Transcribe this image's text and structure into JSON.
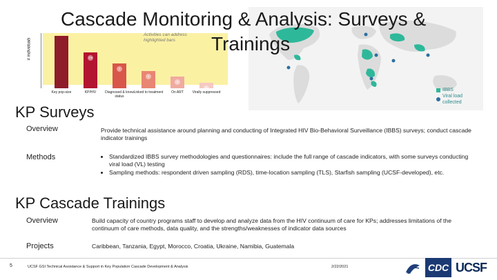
{
  "title": {
    "line1": "Cascade Monitoring & Analysis: Surveys &",
    "line2": "Trainings"
  },
  "chart": {
    "ylabel": "# individuals",
    "note": "Activities can address highlighted bars",
    "bars": [
      {
        "label": "Key pop-size",
        "color": "#8e1c2b",
        "value": 100,
        "badge": ""
      },
      {
        "label": "KP/HIV",
        "color": "#b3142f",
        "value": 68,
        "badge": "1%"
      },
      {
        "label": "Diagnosed & know status",
        "color": "#d9564a",
        "value": 47,
        "badge": "2"
      },
      {
        "label": "Linked to treatment",
        "color": "#e98573",
        "value": 33,
        "badge": "3"
      },
      {
        "label": "On ART",
        "color": "#f0aaa0",
        "value": 22,
        "badge": "4"
      },
      {
        "label": "Virally suppressed",
        "color": "#f5c9c2",
        "value": 11,
        "badge": "5"
      }
    ]
  },
  "map_legend": {
    "ibbs": "IBBS",
    "viral": "Viral load collected"
  },
  "kp_surveys": {
    "title": "KP Surveys",
    "overview_label": "Overview",
    "overview_text": "Provide technical assistance around planning and conducting of Integrated HIV Bio-Behavioral Surveillance (IBBS) surveys; conduct cascade indicator trainings",
    "methods_label": "Methods",
    "methods": [
      "Standardized IBBS survey methodologies and questionnaires: include the full range of cascade indicators, with some surveys conducting viral load (VL) testing",
      "Sampling methods: respondent driven sampling (RDS), time-location sampling (TLS), Starfish sampling (UCSF-developed), etc."
    ]
  },
  "kp_trainings": {
    "title": "KP Cascade Trainings",
    "overview_label": "Overview",
    "overview_text": "Build capacity of country programs staff to develop and analyze data from the HIV continuum of care for KPs; addresses limitations of the continuum of care methods, data quality, and the strengths/weaknesses of indicator data sources",
    "projects_label": "Projects",
    "projects_text": "Caribbean, Tanzania, Egypt, Morocco, Croatia, Ukraine, Namibia, Guatemala"
  },
  "footer": {
    "page": "5",
    "left": "UCSF GSI Technical Assistance & Support in Key Population Cascade Development & Analysis",
    "date": "2/22/2021",
    "logo_cdc": "CDC",
    "logo_ucsf": "UCSF"
  },
  "colors": {
    "ibbs_green": "#2eb89a",
    "vl_pin": "#2c6fa0"
  }
}
